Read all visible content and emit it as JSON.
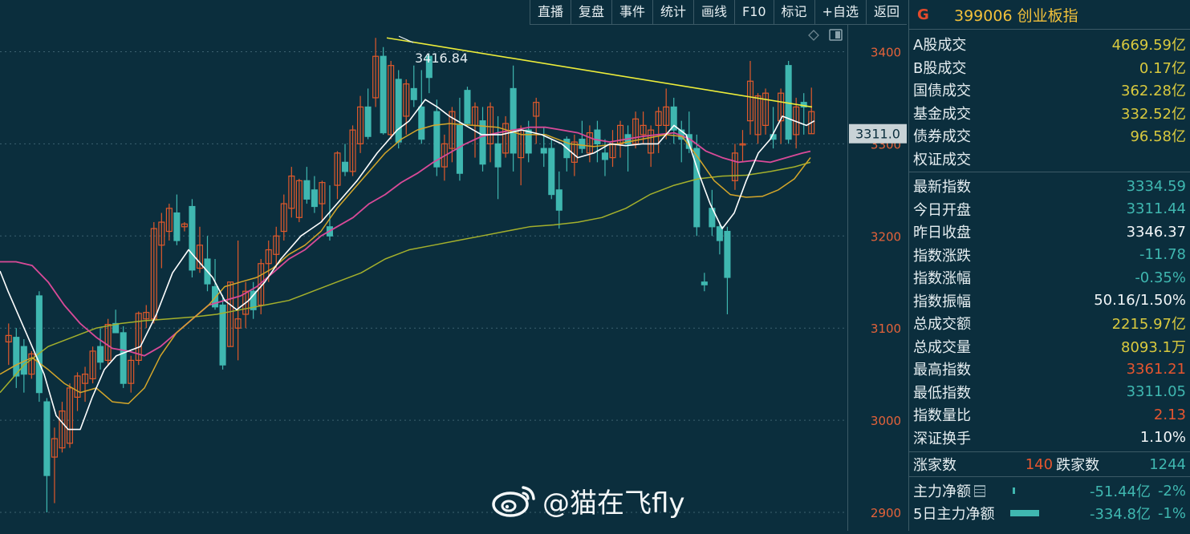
{
  "toolbar": [
    "直播",
    "复盘",
    "事件",
    "统计",
    "画线",
    "F10",
    "标记",
    "+自选",
    "返回"
  ],
  "price_tag": "3311.0",
  "high_annotation": "3416.84",
  "panel": {
    "icon": "G",
    "code": "399006",
    "name": "创业板指",
    "turnover": [
      {
        "label": "A股成交",
        "value": "4669.59亿"
      },
      {
        "label": "B股成交",
        "value": "0.17亿"
      },
      {
        "label": "国债成交",
        "value": "362.28亿"
      },
      {
        "label": "基金成交",
        "value": "332.52亿"
      },
      {
        "label": "债券成交",
        "value": "96.58亿"
      },
      {
        "label": "权证成交",
        "value": ""
      }
    ],
    "stats": [
      {
        "label": "最新指数",
        "value": "3334.59",
        "color": "#3fb7b0"
      },
      {
        "label": "今日开盘",
        "value": "3311.44",
        "color": "#3fb7b0"
      },
      {
        "label": "昨日收盘",
        "value": "3346.37",
        "color": "#f2f6f8"
      },
      {
        "label": "指数涨跌",
        "value": "-11.78",
        "color": "#3fb7b0"
      },
      {
        "label": "指数涨幅",
        "value": "-0.35%",
        "color": "#3fb7b0"
      },
      {
        "label": "指数振幅",
        "value": "50.16/1.50%",
        "color": "#f2f6f8"
      },
      {
        "label": "总成交额",
        "value": "2215.97亿",
        "color": "#d8c93e"
      },
      {
        "label": "总成交量",
        "value": "8093.1万",
        "color": "#d8c93e"
      },
      {
        "label": "最高指数",
        "value": "3361.21",
        "color": "#e5552f"
      },
      {
        "label": "最低指数",
        "value": "3311.05",
        "color": "#3fb7b0"
      },
      {
        "label": "指数量比",
        "value": "2.13",
        "color": "#e5552f"
      },
      {
        "label": "深证换手",
        "value": "1.10%",
        "color": "#f2f6f8"
      }
    ],
    "up_label": "涨家数",
    "up_count": "140",
    "down_label": "跌家数",
    "down_count": "1244",
    "flow": [
      {
        "label": "主力净额",
        "value": "-51.44亿",
        "pct": "-2%",
        "bar": 0.04
      },
      {
        "label": "5日主力净额",
        "value": "-334.8亿",
        "pct": "-1%",
        "bar": 1
      }
    ]
  },
  "watermark": "@猫在飞fly",
  "colors": {
    "up": "#e0592b",
    "down": "#3fb7b0",
    "ma5": "#ffffff",
    "ma10": "#d4a62a",
    "ma20": "#d94a98",
    "ma60": "#a4b02c",
    "trend": "#eded3a",
    "bg": "#0b2e3d"
  },
  "chart_data": {
    "type": "candlestick",
    "ylim": [
      2880,
      3430
    ],
    "y_ticks": [
      2900,
      3000,
      3100,
      3200,
      3300,
      3400
    ],
    "candles": [
      [
        3085,
        3105,
        3060,
        3092
      ],
      [
        3090,
        3100,
        3035,
        3048
      ],
      [
        3080,
        3088,
        3030,
        3050
      ],
      [
        3050,
        3075,
        3045,
        3072
      ],
      [
        3135,
        3140,
        3020,
        3030
      ],
      [
        3020,
        3024,
        2900,
        2940
      ],
      [
        2960,
        2992,
        2910,
        2980
      ],
      [
        2970,
        3020,
        2965,
        3010
      ],
      [
        2975,
        3040,
        2970,
        3035
      ],
      [
        3025,
        3052,
        3010,
        3048
      ],
      [
        3040,
        3058,
        3020,
        3050
      ],
      [
        3045,
        3080,
        3040,
        3075
      ],
      [
        3080,
        3100,
        3055,
        3063
      ],
      [
        3065,
        3110,
        3060,
        3104
      ],
      [
        3105,
        3120,
        3095,
        3095
      ],
      [
        3095,
        3102,
        3035,
        3040
      ],
      [
        3040,
        3070,
        3030,
        3065
      ],
      [
        3065,
        3118,
        3060,
        3116
      ],
      [
        3110,
        3125,
        3100,
        3117
      ],
      [
        3110,
        3215,
        3105,
        3208
      ],
      [
        3190,
        3225,
        3165,
        3215
      ],
      [
        3205,
        3235,
        3195,
        3230
      ],
      [
        3225,
        3245,
        3190,
        3195
      ],
      [
        3210,
        3215,
        3205,
        3213
      ],
      [
        3232,
        3240,
        3155,
        3163
      ],
      [
        3165,
        3210,
        3160,
        3190
      ],
      [
        3175,
        3200,
        3140,
        3148
      ],
      [
        3145,
        3175,
        3120,
        3123
      ],
      [
        3125,
        3136,
        3055,
        3060
      ],
      [
        3080,
        3150,
        3080,
        3150
      ],
      [
        3100,
        3195,
        3065,
        3110
      ],
      [
        3115,
        3150,
        3100,
        3140
      ],
      [
        3140,
        3150,
        3110,
        3120
      ],
      [
        3125,
        3175,
        3115,
        3170
      ],
      [
        3170,
        3195,
        3150,
        3185
      ],
      [
        3180,
        3210,
        3165,
        3200
      ],
      [
        3205,
        3245,
        3195,
        3235
      ],
      [
        3230,
        3275,
        3220,
        3265
      ],
      [
        3220,
        3262,
        3215,
        3260
      ],
      [
        3260,
        3275,
        3235,
        3240
      ],
      [
        3250,
        3265,
        3225,
        3232
      ],
      [
        3235,
        3260,
        3215,
        3258
      ],
      [
        3210,
        3255,
        3195,
        3200
      ],
      [
        3255,
        3292,
        3240,
        3290
      ],
      [
        3280,
        3300,
        3265,
        3270
      ],
      [
        3270,
        3320,
        3265,
        3315
      ],
      [
        3300,
        3352,
        3290,
        3340
      ],
      [
        3340,
        3360,
        3305,
        3308
      ],
      [
        3350,
        3415,
        3340,
        3395
      ],
      [
        3395,
        3405,
        3310,
        3312
      ],
      [
        3310,
        3390,
        3305,
        3385
      ],
      [
        3370,
        3380,
        3295,
        3302
      ],
      [
        3330,
        3370,
        3310,
        3365
      ],
      [
        3360,
        3385,
        3340,
        3348
      ],
      [
        3340,
        3380,
        3300,
        3305
      ],
      [
        3395,
        3398,
        3355,
        3372
      ],
      [
        3335,
        3348,
        3265,
        3275
      ],
      [
        3275,
        3310,
        3260,
        3300
      ],
      [
        3295,
        3340,
        3280,
        3335
      ],
      [
        3320,
        3350,
        3260,
        3268
      ],
      [
        3358,
        3362,
        3320,
        3322
      ],
      [
        3320,
        3345,
        3285,
        3340
      ],
      [
        3325,
        3340,
        3270,
        3278
      ],
      [
        3300,
        3345,
        3280,
        3340
      ],
      [
        3300,
        3330,
        3240,
        3275
      ],
      [
        3290,
        3330,
        3285,
        3322
      ],
      [
        3360,
        3385,
        3270,
        3290
      ],
      [
        3285,
        3320,
        3255,
        3315
      ],
      [
        3315,
        3325,
        3280,
        3290
      ],
      [
        3330,
        3350,
        3300,
        3345
      ],
      [
        3295,
        3318,
        3275,
        3290
      ],
      [
        3295,
        3305,
        3240,
        3245
      ],
      [
        3250,
        3270,
        3208,
        3228
      ],
      [
        3305,
        3308,
        3270,
        3285
      ],
      [
        3280,
        3310,
        3265,
        3302
      ],
      [
        3305,
        3325,
        3290,
        3295
      ],
      [
        3290,
        3320,
        3280,
        3312
      ],
      [
        3315,
        3325,
        3280,
        3300
      ],
      [
        3290,
        3305,
        3265,
        3283
      ],
      [
        3285,
        3315,
        3275,
        3300
      ],
      [
        3300,
        3325,
        3285,
        3320
      ],
      [
        3310,
        3320,
        3270,
        3300
      ],
      [
        3300,
        3335,
        3295,
        3327
      ],
      [
        3310,
        3335,
        3300,
        3320
      ],
      [
        3290,
        3320,
        3275,
        3315
      ],
      [
        3320,
        3340,
        3290,
        3335
      ],
      [
        3320,
        3360,
        3305,
        3340
      ],
      [
        3340,
        3350,
        3300,
        3315
      ],
      [
        3315,
        3325,
        3280,
        3305
      ],
      [
        3310,
        3335,
        3290,
        3295
      ],
      [
        3295,
        3310,
        3200,
        3210
      ],
      [
        3150,
        3160,
        3140,
        3147
      ],
      [
        3230,
        3250,
        3200,
        3210
      ],
      [
        3210,
        3215,
        3180,
        3195
      ],
      [
        3205,
        3210,
        3115,
        3155
      ],
      [
        3260,
        3300,
        3250,
        3290
      ],
      [
        3300,
        3315,
        3280,
        3300
      ],
      [
        3325,
        3390,
        3310,
        3368
      ],
      [
        3310,
        3355,
        3300,
        3352
      ],
      [
        3320,
        3360,
        3310,
        3355
      ],
      [
        3310,
        3340,
        3295,
        3305
      ],
      [
        3325,
        3360,
        3300,
        3355
      ],
      [
        3385,
        3390,
        3300,
        3305
      ],
      [
        3310,
        3350,
        3295,
        3340
      ],
      [
        3345,
        3355,
        3310,
        3340
      ],
      [
        3311,
        3361,
        3311,
        3335
      ]
    ],
    "ma5": [
      [
        0,
        3162
      ],
      [
        10,
        3140
      ],
      [
        30,
        3100
      ],
      [
        55,
        3050
      ],
      [
        70,
        3005
      ],
      [
        85,
        2990
      ],
      [
        100,
        2990
      ],
      [
        115,
        3025
      ],
      [
        130,
        3055
      ],
      [
        145,
        3070
      ],
      [
        160,
        3075
      ],
      [
        175,
        3080
      ],
      [
        195,
        3115
      ],
      [
        215,
        3160
      ],
      [
        235,
        3185
      ],
      [
        250,
        3170
      ],
      [
        265,
        3155
      ],
      [
        280,
        3130
      ],
      [
        295,
        3120
      ],
      [
        310,
        3130
      ],
      [
        330,
        3150
      ],
      [
        350,
        3175
      ],
      [
        375,
        3200
      ],
      [
        400,
        3215
      ],
      [
        420,
        3235
      ],
      [
        445,
        3260
      ],
      [
        470,
        3290
      ],
      [
        495,
        3315
      ],
      [
        510,
        3325
      ],
      [
        530,
        3348
      ],
      [
        545,
        3340
      ],
      [
        560,
        3330
      ],
      [
        580,
        3320
      ],
      [
        600,
        3310
      ],
      [
        625,
        3310
      ],
      [
        650,
        3315
      ],
      [
        675,
        3310
      ],
      [
        700,
        3300
      ],
      [
        720,
        3285
      ],
      [
        740,
        3290
      ],
      [
        760,
        3300
      ],
      [
        780,
        3298
      ],
      [
        800,
        3300
      ],
      [
        820,
        3300
      ],
      [
        840,
        3320
      ],
      [
        855,
        3310
      ],
      [
        870,
        3270
      ],
      [
        885,
        3235
      ],
      [
        900,
        3208
      ],
      [
        915,
        3225
      ],
      [
        930,
        3260
      ],
      [
        945,
        3290
      ],
      [
        960,
        3305
      ],
      [
        975,
        3330
      ],
      [
        990,
        3325
      ],
      [
        1005,
        3320
      ],
      [
        1015,
        3325
      ]
    ],
    "ma10": [
      [
        0,
        3050
      ],
      [
        20,
        3060
      ],
      [
        40,
        3068
      ],
      [
        60,
        3055
      ],
      [
        80,
        3040
      ],
      [
        100,
        3030
      ],
      [
        120,
        3035
      ],
      [
        140,
        3020
      ],
      [
        160,
        3018
      ],
      [
        180,
        3035
      ],
      [
        200,
        3070
      ],
      [
        220,
        3095
      ],
      [
        240,
        3110
      ],
      [
        260,
        3125
      ],
      [
        280,
        3145
      ],
      [
        300,
        3150
      ],
      [
        320,
        3155
      ],
      [
        340,
        3165
      ],
      [
        360,
        3180
      ],
      [
        380,
        3190
      ],
      [
        400,
        3205
      ],
      [
        420,
        3230
      ],
      [
        440,
        3250
      ],
      [
        460,
        3270
      ],
      [
        480,
        3290
      ],
      [
        500,
        3305
      ],
      [
        520,
        3315
      ],
      [
        540,
        3320
      ],
      [
        560,
        3322
      ],
      [
        590,
        3320
      ],
      [
        620,
        3318
      ],
      [
        650,
        3310
      ],
      [
        680,
        3310
      ],
      [
        710,
        3300
      ],
      [
        740,
        3297
      ],
      [
        770,
        3300
      ],
      [
        800,
        3305
      ],
      [
        830,
        3310
      ],
      [
        850,
        3308
      ],
      [
        870,
        3285
      ],
      [
        890,
        3260
      ],
      [
        910,
        3245
      ],
      [
        930,
        3242
      ],
      [
        950,
        3243
      ],
      [
        970,
        3250
      ],
      [
        990,
        3262
      ],
      [
        1010,
        3285
      ]
    ],
    "ma20": [
      [
        0,
        3172
      ],
      [
        20,
        3172
      ],
      [
        40,
        3168
      ],
      [
        60,
        3150
      ],
      [
        80,
        3125
      ],
      [
        100,
        3105
      ],
      [
        120,
        3090
      ],
      [
        140,
        3078
      ],
      [
        160,
        3075
      ],
      [
        180,
        3070
      ],
      [
        200,
        3080
      ],
      [
        220,
        3095
      ],
      [
        240,
        3110
      ],
      [
        260,
        3125
      ],
      [
        280,
        3130
      ],
      [
        300,
        3135
      ],
      [
        320,
        3145
      ],
      [
        340,
        3160
      ],
      [
        360,
        3175
      ],
      [
        380,
        3185
      ],
      [
        400,
        3200
      ],
      [
        420,
        3210
      ],
      [
        440,
        3220
      ],
      [
        460,
        3235
      ],
      [
        480,
        3245
      ],
      [
        500,
        3258
      ],
      [
        520,
        3268
      ],
      [
        540,
        3280
      ],
      [
        560,
        3290
      ],
      [
        580,
        3300
      ],
      [
        600,
        3308
      ],
      [
        620,
        3312
      ],
      [
        640,
        3315
      ],
      [
        660,
        3318
      ],
      [
        680,
        3318
      ],
      [
        700,
        3315
      ],
      [
        720,
        3312
      ],
      [
        740,
        3305
      ],
      [
        760,
        3302
      ],
      [
        780,
        3305
      ],
      [
        800,
        3308
      ],
      [
        820,
        3310
      ],
      [
        840,
        3312
      ],
      [
        860,
        3305
      ],
      [
        880,
        3292
      ],
      [
        900,
        3285
      ],
      [
        920,
        3280
      ],
      [
        940,
        3282
      ],
      [
        960,
        3280
      ],
      [
        980,
        3285
      ],
      [
        1000,
        3290
      ],
      [
        1010,
        3292
      ]
    ],
    "ma60": [
      [
        0,
        3030
      ],
      [
        30,
        3060
      ],
      [
        60,
        3080
      ],
      [
        90,
        3090
      ],
      [
        120,
        3100
      ],
      [
        150,
        3105
      ],
      [
        180,
        3108
      ],
      [
        210,
        3110
      ],
      [
        240,
        3112
      ],
      [
        270,
        3115
      ],
      [
        300,
        3120
      ],
      [
        330,
        3125
      ],
      [
        360,
        3130
      ],
      [
        390,
        3140
      ],
      [
        420,
        3150
      ],
      [
        450,
        3160
      ],
      [
        480,
        3175
      ],
      [
        510,
        3185
      ],
      [
        540,
        3190
      ],
      [
        570,
        3195
      ],
      [
        600,
        3200
      ],
      [
        630,
        3205
      ],
      [
        660,
        3210
      ],
      [
        690,
        3212
      ],
      [
        720,
        3215
      ],
      [
        750,
        3220
      ],
      [
        780,
        3230
      ],
      [
        810,
        3245
      ],
      [
        840,
        3255
      ],
      [
        870,
        3262
      ],
      [
        900,
        3265
      ],
      [
        930,
        3266
      ],
      [
        960,
        3270
      ],
      [
        990,
        3275
      ],
      [
        1010,
        3280
      ]
    ],
    "trendline": [
      [
        482,
        3415
      ],
      [
        1012,
        3340
      ]
    ]
  }
}
